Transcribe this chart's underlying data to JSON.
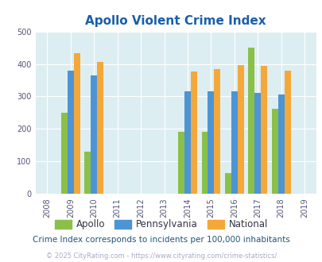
{
  "title": "Apollo Violent Crime Index",
  "years": [
    2008,
    2009,
    2010,
    2011,
    2012,
    2013,
    2014,
    2015,
    2016,
    2017,
    2018,
    2019
  ],
  "data_years": [
    2009,
    2010,
    2014,
    2015,
    2016,
    2017,
    2018
  ],
  "apollo": [
    250,
    130,
    190,
    190,
    65,
    450,
    262
  ],
  "pennsylvania": [
    380,
    365,
    315,
    315,
    315,
    310,
    305
  ],
  "national": [
    432,
    407,
    378,
    383,
    397,
    393,
    380
  ],
  "apollo_color": "#8ac04a",
  "pennsylvania_color": "#4d94d4",
  "national_color": "#f4a83a",
  "bg_color": "#ddeef2",
  "ylim": [
    0,
    500
  ],
  "yticks": [
    0,
    100,
    200,
    300,
    400,
    500
  ],
  "bar_width": 0.27,
  "subtitle": "Crime Index corresponds to incidents per 100,000 inhabitants",
  "footer": "© 2025 CityRating.com - https://www.cityrating.com/crime-statistics/",
  "legend_labels": [
    "Apollo",
    "Pennsylvania",
    "National"
  ],
  "title_color": "#1a5fa8",
  "tick_color": "#555577",
  "subtitle_color": "#225577",
  "footer_color": "#aaaacc"
}
